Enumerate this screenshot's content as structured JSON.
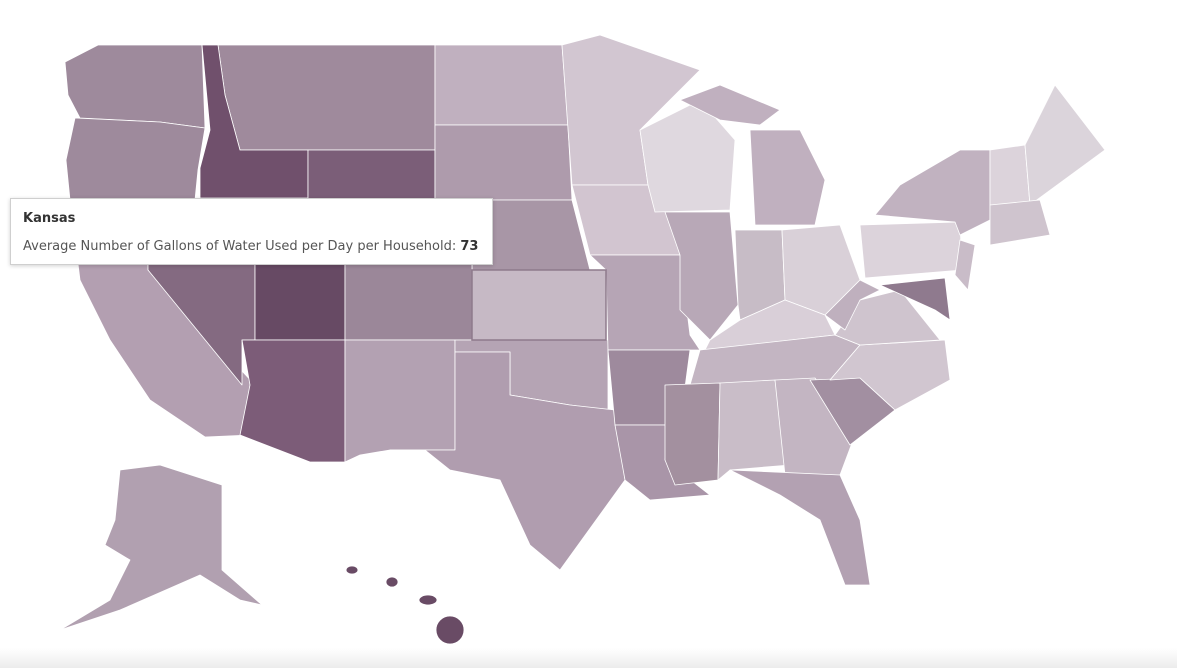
{
  "tooltip": {
    "title": "Kansas",
    "label": "Average Number of Gallons of Water Used per Day per Household:",
    "value": 73
  }
}
